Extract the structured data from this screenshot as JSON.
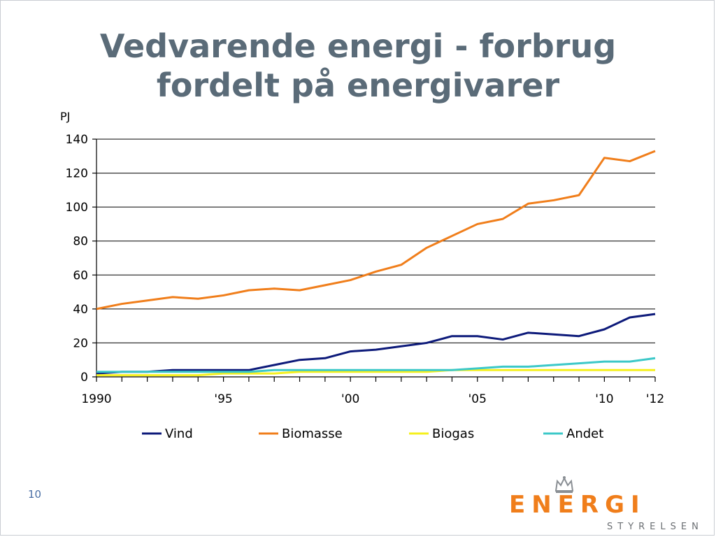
{
  "slide": {
    "title_line1": "Vedvarende energi - forbrug",
    "title_line2": "fordelt på energivarer",
    "slide_number": "10"
  },
  "logo": {
    "word": "ENERGI",
    "subtitle": "STYRELSEN",
    "icon": "crown-icon"
  },
  "colors": {
    "title": "#5a6b78",
    "vind": "#0d1a7a",
    "biomasse": "#f07e1b",
    "biogas": "#f5f01e",
    "andet": "#3cc8c8",
    "brand_orange": "#f07e1b"
  },
  "chart_data": {
    "type": "line",
    "ylabel": "PJ",
    "xlabel": "",
    "ylim": [
      0,
      140
    ],
    "yticks": [
      0,
      20,
      40,
      60,
      80,
      100,
      120,
      140
    ],
    "grid": true,
    "legend": "bottom",
    "x": [
      1990,
      1991,
      1992,
      1993,
      1994,
      1995,
      1996,
      1997,
      1998,
      1999,
      2000,
      2001,
      2002,
      2003,
      2004,
      2005,
      2006,
      2007,
      2008,
      2009,
      2010,
      2011,
      2012
    ],
    "xtick_labels": [
      {
        "year": 1990,
        "label": "1990"
      },
      {
        "year": 1995,
        "label": "'95"
      },
      {
        "year": 2000,
        "label": "'00"
      },
      {
        "year": 2005,
        "label": "'05"
      },
      {
        "year": 2010,
        "label": "'10"
      },
      {
        "year": 2012,
        "label": "'12"
      }
    ],
    "series": [
      {
        "name": "Vind",
        "color": "#0d1a7a",
        "values": [
          2,
          3,
          3,
          4,
          4,
          4,
          4,
          7,
          10,
          11,
          15,
          16,
          18,
          20,
          24,
          24,
          22,
          26,
          25,
          24,
          28,
          35,
          37
        ]
      },
      {
        "name": "Biomasse",
        "color": "#f07e1b",
        "values": [
          40,
          43,
          45,
          47,
          46,
          48,
          51,
          52,
          51,
          54,
          57,
          62,
          66,
          76,
          83,
          90,
          93,
          102,
          104,
          107,
          129,
          127,
          133
        ]
      },
      {
        "name": "Biogas",
        "color": "#f5f01e",
        "values": [
          1,
          1,
          1,
          1,
          1,
          2,
          2,
          2,
          3,
          3,
          3,
          3,
          3,
          3,
          4,
          4,
          4,
          4,
          4,
          4,
          4,
          4,
          4
        ]
      },
      {
        "name": "Andet",
        "color": "#3cc8c8",
        "values": [
          3,
          3,
          3,
          3,
          3,
          3,
          3,
          4,
          4,
          4,
          4,
          4,
          4,
          4,
          4,
          5,
          6,
          6,
          7,
          8,
          9,
          9,
          11
        ]
      }
    ]
  }
}
